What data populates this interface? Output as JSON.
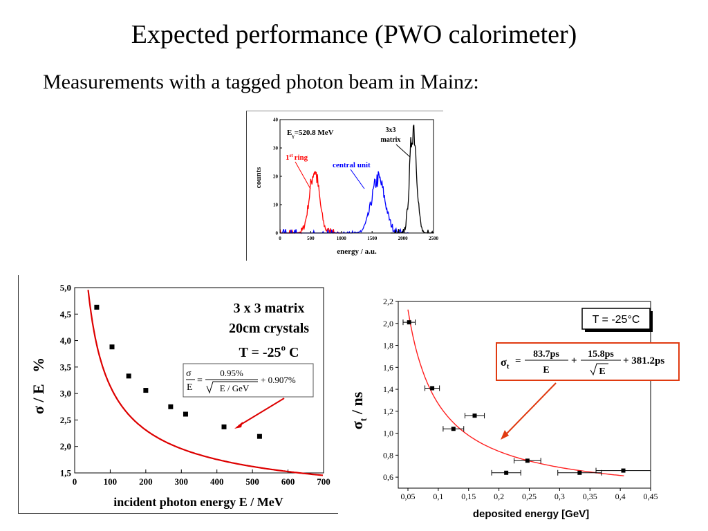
{
  "slide": {
    "title": "Expected performance (PWO calorimeter)",
    "subtitle": "Measurements with a tagged photon beam in Mainz:"
  },
  "chart_data": [
    {
      "id": "energy-spectrum",
      "type": "line",
      "xlabel": "energy / a.u.",
      "ylabel": "counts",
      "xlim": [
        0,
        2500
      ],
      "ylim": [
        0,
        40
      ],
      "x_ticks": [
        "0",
        "500",
        "1000",
        "1500",
        "2000",
        "2500"
      ],
      "y_ticks": [
        "0",
        "10",
        "20",
        "30",
        "40"
      ],
      "annotations": {
        "energy_base": "E",
        "energy_sub": "γ",
        "energy_value": "=520.8 MeV",
        "ring_num": "1",
        "ring_sup": "st",
        "ring_word": "ring",
        "central": "central unit",
        "matrix_line1": "3x3",
        "matrix_line2": "matrix"
      },
      "series": [
        {
          "name": "1st ring",
          "color": "#ff0000",
          "peak": 560,
          "sigma": 80,
          "amplitude": 22,
          "range": [
            0,
            1000
          ]
        },
        {
          "name": "central unit",
          "color": "#0000ff",
          "peak": 1600,
          "sigma": 110,
          "amplitude": 19,
          "range": [
            0,
            2100
          ]
        },
        {
          "name": "3x3 matrix",
          "color": "#000000",
          "peak": 2170,
          "sigma": 55,
          "amplitude": 38,
          "range": [
            1800,
            2500
          ]
        }
      ]
    },
    {
      "id": "energy-resolution",
      "type": "scatter",
      "xlabel": "incident photon energy E / MeV",
      "ylabel": "σ / E   %",
      "xlim": [
        0,
        700
      ],
      "ylim": [
        1.5,
        5.0
      ],
      "x_ticks": [
        "0",
        "100",
        "200",
        "300",
        "400",
        "500",
        "600",
        "700"
      ],
      "y_ticks": [
        "1,5",
        "2,0",
        "2,5",
        "3,0",
        "3,5",
        "4,0",
        "4,5",
        "5,0"
      ],
      "y_tick_values": [
        1.5,
        2.0,
        2.5,
        3.0,
        3.5,
        4.0,
        4.5,
        5.0
      ],
      "annotations": {
        "matrix": "3 x 3 matrix",
        "crystals": "20cm crystals",
        "temp_base": "T = -25",
        "temp_sup": "o",
        "temp_unit": " C",
        "formula_sigma": "σ",
        "formula_E": "E",
        "formula_eq": "=",
        "formula_num": "0.95%",
        "formula_den": "E / GeV",
        "formula_const": "+ 0.907%"
      },
      "fit": {
        "a": 0.95,
        "b": 0.907,
        "color": "#dd0000"
      },
      "points": {
        "x": [
          62,
          105,
          152,
          200,
          270,
          312,
          420,
          520
        ],
        "y": [
          4.63,
          3.88,
          3.33,
          3.06,
          2.75,
          2.61,
          2.37,
          2.19
        ]
      }
    },
    {
      "id": "timing-resolution",
      "type": "scatter",
      "xlabel": "deposited energy [GeV]",
      "ylabel_base": "σ",
      "ylabel_sub": "t",
      "ylabel_rest": " / ns",
      "xlim": [
        0.0,
        0.45
      ],
      "ylim": [
        0.5,
        2.2
      ],
      "x_ticks": [
        "0,05",
        "0,1",
        "0,15",
        "0,2",
        "0,25",
        "0,3",
        "0,35",
        "0,4",
        "0,45"
      ],
      "x_tick_values": [
        0.05,
        0.1,
        0.15,
        0.2,
        0.25,
        0.3,
        0.35,
        0.4,
        0.45
      ],
      "y_ticks": [
        "0,6",
        "0,8",
        "1,0",
        "1,2",
        "1,4",
        "1,6",
        "1,8",
        "2,0",
        "2,2"
      ],
      "y_tick_values": [
        0.6,
        0.8,
        1.0,
        1.2,
        1.4,
        1.6,
        1.8,
        2.0,
        2.2
      ],
      "annotations": {
        "temp": "T = -25°C",
        "f_sigma": "σ",
        "f_sub": "t",
        "f_eq": "=",
        "f_num1": "83.7ps",
        "f_den1": "E",
        "f_plus1": "+",
        "f_num2": "15.8ps",
        "f_den2": "E",
        "f_rest": "+ 381.2ps",
        "box_color": "#e03a10"
      },
      "fit": {
        "a": 83.7,
        "b": 15.8,
        "c": 381.2,
        "color": "#ff0000"
      },
      "points": {
        "x": [
          0.052,
          0.09,
          0.125,
          0.16,
          0.212,
          0.247,
          0.333,
          0.405
        ],
        "y": [
          2.01,
          1.41,
          1.04,
          1.16,
          0.64,
          0.75,
          0.64,
          0.66
        ],
        "xerr": [
          0.01,
          0.012,
          0.017,
          0.016,
          0.024,
          0.022,
          0.036,
          0.045
        ]
      }
    }
  ]
}
